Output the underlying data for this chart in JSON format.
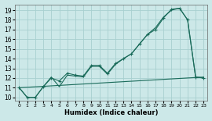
{
  "xlabel": "Humidex (Indice chaleur)",
  "bg_color": "#cce8e8",
  "grid_color": "#a8d0d0",
  "line_color": "#1a6b5a",
  "xlim": [
    -0.5,
    23.5
  ],
  "ylim": [
    9.7,
    19.6
  ],
  "xticks": [
    0,
    1,
    2,
    3,
    4,
    5,
    6,
    7,
    8,
    9,
    10,
    11,
    12,
    13,
    14,
    15,
    16,
    17,
    18,
    19,
    20,
    21,
    22,
    23
  ],
  "yticks": [
    10,
    11,
    12,
    13,
    14,
    15,
    16,
    17,
    18,
    19
  ],
  "line1_x": [
    0,
    1,
    2,
    3,
    4,
    5,
    6,
    7,
    8,
    9,
    10,
    11,
    12,
    13,
    14,
    15,
    16,
    17,
    18,
    19,
    20,
    21,
    22,
    23
  ],
  "line1_y": [
    11.0,
    10.0,
    10.0,
    11.1,
    12.0,
    11.7,
    12.5,
    12.3,
    12.2,
    13.3,
    13.3,
    12.5,
    13.5,
    14.0,
    14.5,
    15.5,
    16.5,
    17.0,
    18.2,
    19.1,
    19.2,
    18.0,
    12.1,
    12.0
  ],
  "line2_x": [
    0,
    1,
    2,
    3,
    4,
    5,
    6,
    7,
    8,
    9,
    10,
    11,
    12,
    13,
    14,
    15,
    16,
    17,
    18,
    19,
    20,
    21,
    22,
    23
  ],
  "line2_y": [
    11.0,
    10.0,
    10.0,
    11.1,
    12.1,
    11.1,
    12.3,
    12.2,
    12.1,
    13.2,
    13.2,
    12.4,
    13.4,
    14.0,
    14.5,
    15.5,
    16.5,
    17.2,
    18.3,
    19.0,
    19.2,
    18.0,
    12.1,
    12.0
  ],
  "line3_x": [
    0,
    23
  ],
  "line3_y": [
    11.0,
    12.1
  ]
}
